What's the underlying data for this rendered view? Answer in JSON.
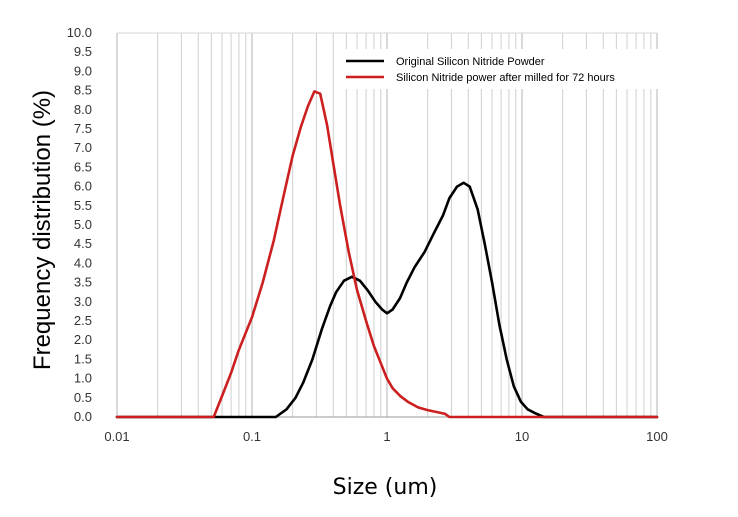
{
  "chart_data": {
    "type": "line",
    "title": "",
    "xlabel": "Size (um)",
    "ylabel": "Frequency distribution (%)",
    "xscale": "log",
    "xlim": [
      0.01,
      100
    ],
    "ylim": [
      0,
      10
    ],
    "x_ticks": [
      "0.01",
      "0.1",
      "1",
      "10",
      "100"
    ],
    "y_ticks": [
      "0.0",
      "0.5",
      "1.0",
      "1.5",
      "2.0",
      "2.5",
      "3.0",
      "3.5",
      "4.0",
      "4.5",
      "5.0",
      "5.5",
      "6.0",
      "6.5",
      "7.0",
      "7.5",
      "8.0",
      "8.5",
      "9.0",
      "9.5",
      "10.0"
    ],
    "grid": true,
    "legend_position": "top-right",
    "series": [
      {
        "name": "Original Silicon Nitride Powder",
        "color": "#000000",
        "points": [
          [
            0.01,
            0
          ],
          [
            0.05,
            0
          ],
          [
            0.1,
            0
          ],
          [
            0.15,
            0
          ],
          [
            0.18,
            0.2
          ],
          [
            0.21,
            0.5
          ],
          [
            0.24,
            0.9
          ],
          [
            0.28,
            1.5
          ],
          [
            0.33,
            2.3
          ],
          [
            0.38,
            2.9
          ],
          [
            0.42,
            3.25
          ],
          [
            0.48,
            3.55
          ],
          [
            0.55,
            3.65
          ],
          [
            0.63,
            3.55
          ],
          [
            0.72,
            3.3
          ],
          [
            0.82,
            3.0
          ],
          [
            0.92,
            2.8
          ],
          [
            1.0,
            2.7
          ],
          [
            1.1,
            2.8
          ],
          [
            1.25,
            3.1
          ],
          [
            1.4,
            3.5
          ],
          [
            1.6,
            3.9
          ],
          [
            1.9,
            4.3
          ],
          [
            2.2,
            4.75
          ],
          [
            2.6,
            5.25
          ],
          [
            2.9,
            5.7
          ],
          [
            3.3,
            6.0
          ],
          [
            3.7,
            6.1
          ],
          [
            4.1,
            6.0
          ],
          [
            4.7,
            5.4
          ],
          [
            5.3,
            4.5
          ],
          [
            6.0,
            3.5
          ],
          [
            6.8,
            2.4
          ],
          [
            7.7,
            1.5
          ],
          [
            8.7,
            0.8
          ],
          [
            9.8,
            0.4
          ],
          [
            11.0,
            0.2
          ],
          [
            12.5,
            0.1
          ],
          [
            14.5,
            0
          ],
          [
            20,
            0
          ],
          [
            100,
            0
          ]
        ]
      },
      {
        "name": "Silicon Nitride power after milled for 72 hours",
        "color": "#cc1f1f",
        "points": [
          [
            0.01,
            0
          ],
          [
            0.03,
            0
          ],
          [
            0.052,
            0
          ],
          [
            0.06,
            0.55
          ],
          [
            0.07,
            1.15
          ],
          [
            0.08,
            1.75
          ],
          [
            0.1,
            2.6
          ],
          [
            0.12,
            3.5
          ],
          [
            0.145,
            4.6
          ],
          [
            0.17,
            5.7
          ],
          [
            0.2,
            6.8
          ],
          [
            0.23,
            7.55
          ],
          [
            0.26,
            8.1
          ],
          [
            0.29,
            8.48
          ],
          [
            0.32,
            8.42
          ],
          [
            0.36,
            7.6
          ],
          [
            0.4,
            6.6
          ],
          [
            0.45,
            5.5
          ],
          [
            0.52,
            4.3
          ],
          [
            0.6,
            3.3
          ],
          [
            0.7,
            2.5
          ],
          [
            0.8,
            1.85
          ],
          [
            0.9,
            1.4
          ],
          [
            1.0,
            1.0
          ],
          [
            1.1,
            0.75
          ],
          [
            1.25,
            0.55
          ],
          [
            1.45,
            0.38
          ],
          [
            1.7,
            0.25
          ],
          [
            2.0,
            0.18
          ],
          [
            2.4,
            0.12
          ],
          [
            2.7,
            0.08
          ],
          [
            2.9,
            0
          ],
          [
            5,
            0
          ],
          [
            100,
            0
          ]
        ]
      }
    ]
  }
}
